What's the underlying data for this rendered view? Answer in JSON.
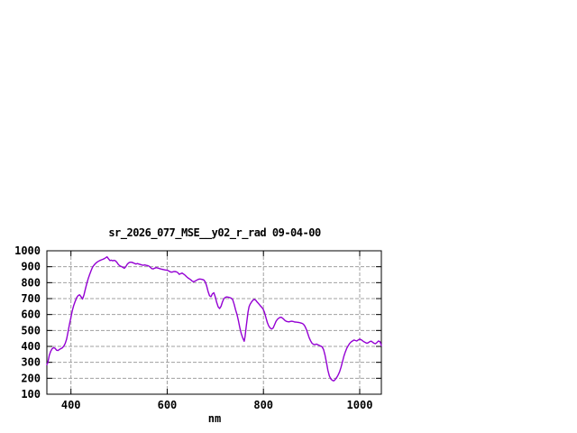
{
  "window": {
    "background": "#ffffff"
  },
  "colors": {
    "line": "#9400d3",
    "grid": "#a0a0a0",
    "axis": "#000000",
    "text": "#000000",
    "background": "#ffffff"
  },
  "chart_data": {
    "type": "line",
    "title": "sr_2026_077_MSE__y02_r_rad 09-04-00",
    "xlabel": "nm",
    "ylabel": "",
    "xlim": [
      350,
      1045
    ],
    "ylim": [
      100,
      1000
    ],
    "x_ticks": [
      400,
      600,
      800,
      1000
    ],
    "y_ticks": [
      100,
      200,
      300,
      400,
      500,
      600,
      700,
      800,
      900,
      1000
    ],
    "grid": true,
    "legend_position": "none",
    "series": [
      {
        "name": "sr_2026_077_MSE__y02_r_rad",
        "color": "#9400d3",
        "points": [
          [
            350,
            285
          ],
          [
            352,
            300
          ],
          [
            355,
            345
          ],
          [
            358,
            370
          ],
          [
            361,
            386
          ],
          [
            364,
            392
          ],
          [
            367,
            388
          ],
          [
            370,
            376
          ],
          [
            373,
            374
          ],
          [
            376,
            381
          ],
          [
            379,
            386
          ],
          [
            382,
            391
          ],
          [
            385,
            401
          ],
          [
            388,
            418
          ],
          [
            391,
            446
          ],
          [
            394,
            492
          ],
          [
            397,
            540
          ],
          [
            400,
            583
          ],
          [
            403,
            627
          ],
          [
            406,
            659
          ],
          [
            409,
            684
          ],
          [
            412,
            706
          ],
          [
            415,
            719
          ],
          [
            418,
            724
          ],
          [
            421,
            712
          ],
          [
            424,
            697
          ],
          [
            427,
            722
          ],
          [
            430,
            760
          ],
          [
            433,
            795
          ],
          [
            436,
            826
          ],
          [
            439,
            852
          ],
          [
            442,
            876
          ],
          [
            445,
            898
          ],
          [
            448,
            910
          ],
          [
            451,
            920
          ],
          [
            454,
            928
          ],
          [
            457,
            934
          ],
          [
            460,
            939
          ],
          [
            463,
            943
          ],
          [
            466,
            946
          ],
          [
            469,
            950
          ],
          [
            472,
            956
          ],
          [
            475,
            962
          ],
          [
            478,
            950
          ],
          [
            481,
            939
          ],
          [
            484,
            941
          ],
          [
            487,
            937
          ],
          [
            490,
            940
          ],
          [
            493,
            936
          ],
          [
            496,
            926
          ],
          [
            499,
            912
          ],
          [
            502,
            905
          ],
          [
            505,
            901
          ],
          [
            508,
            896
          ],
          [
            511,
            890
          ],
          [
            514,
            900
          ],
          [
            517,
            915
          ],
          [
            520,
            924
          ],
          [
            523,
            928
          ],
          [
            526,
            928
          ],
          [
            529,
            925
          ],
          [
            532,
            921
          ],
          [
            535,
            917
          ],
          [
            538,
            920
          ],
          [
            541,
            917
          ],
          [
            544,
            914
          ],
          [
            547,
            911
          ],
          [
            550,
            909
          ],
          [
            553,
            911
          ],
          [
            556,
            909
          ],
          [
            559,
            907
          ],
          [
            562,
            904
          ],
          [
            565,
            896
          ],
          [
            568,
            888
          ],
          [
            571,
            886
          ],
          [
            574,
            891
          ],
          [
            577,
            894
          ],
          [
            580,
            892
          ],
          [
            583,
            889
          ],
          [
            586,
            886
          ],
          [
            589,
            884
          ],
          [
            592,
            882
          ],
          [
            595,
            880
          ],
          [
            598,
            879
          ],
          [
            601,
            877
          ],
          [
            604,
            872
          ],
          [
            607,
            867
          ],
          [
            610,
            866
          ],
          [
            613,
            869
          ],
          [
            616,
            870
          ],
          [
            619,
            868
          ],
          [
            622,
            863
          ],
          [
            625,
            852
          ],
          [
            628,
            856
          ],
          [
            631,
            860
          ],
          [
            634,
            854
          ],
          [
            637,
            847
          ],
          [
            640,
            838
          ],
          [
            643,
            830
          ],
          [
            646,
            824
          ],
          [
            649,
            818
          ],
          [
            652,
            810
          ],
          [
            655,
            805
          ],
          [
            658,
            810
          ],
          [
            661,
            815
          ],
          [
            664,
            820
          ],
          [
            667,
            823
          ],
          [
            670,
            822
          ],
          [
            673,
            820
          ],
          [
            676,
            817
          ],
          [
            679,
            805
          ],
          [
            682,
            780
          ],
          [
            685,
            745
          ],
          [
            688,
            718
          ],
          [
            691,
            712
          ],
          [
            694,
            730
          ],
          [
            697,
            737
          ],
          [
            700,
            710
          ],
          [
            703,
            675
          ],
          [
            706,
            648
          ],
          [
            709,
            638
          ],
          [
            712,
            652
          ],
          [
            715,
            680
          ],
          [
            718,
            700
          ],
          [
            721,
            708
          ],
          [
            724,
            710
          ],
          [
            727,
            709
          ],
          [
            730,
            706
          ],
          [
            733,
            703
          ],
          [
            736,
            693
          ],
          [
            739,
            665
          ],
          [
            742,
            630
          ],
          [
            745,
            600
          ],
          [
            748,
            560
          ],
          [
            751,
            515
          ],
          [
            754,
            478
          ],
          [
            757,
            452
          ],
          [
            760,
            432
          ],
          [
            762,
            465
          ],
          [
            764,
            520
          ],
          [
            766,
            570
          ],
          [
            768,
            615
          ],
          [
            770,
            648
          ],
          [
            772,
            663
          ],
          [
            775,
            678
          ],
          [
            778,
            690
          ],
          [
            781,
            695
          ],
          [
            784,
            690
          ],
          [
            787,
            678
          ],
          [
            790,
            668
          ],
          [
            793,
            657
          ],
          [
            796,
            647
          ],
          [
            799,
            636
          ],
          [
            802,
            615
          ],
          [
            805,
            582
          ],
          [
            808,
            550
          ],
          [
            811,
            528
          ],
          [
            814,
            515
          ],
          [
            817,
            509
          ],
          [
            820,
            515
          ],
          [
            823,
            535
          ],
          [
            826,
            557
          ],
          [
            829,
            570
          ],
          [
            832,
            578
          ],
          [
            835,
            583
          ],
          [
            838,
            581
          ],
          [
            841,
            574
          ],
          [
            844,
            565
          ],
          [
            847,
            558
          ],
          [
            850,
            555
          ],
          [
            853,
            554
          ],
          [
            856,
            557
          ],
          [
            859,
            558
          ],
          [
            862,
            556
          ],
          [
            865,
            553
          ],
          [
            868,
            552
          ],
          [
            871,
            551
          ],
          [
            874,
            550
          ],
          [
            877,
            548
          ],
          [
            880,
            545
          ],
          [
            883,
            540
          ],
          [
            886,
            528
          ],
          [
            889,
            508
          ],
          [
            892,
            482
          ],
          [
            895,
            455
          ],
          [
            898,
            435
          ],
          [
            901,
            420
          ],
          [
            904,
            413
          ],
          [
            907,
            411
          ],
          [
            910,
            415
          ],
          [
            913,
            411
          ],
          [
            916,
            406
          ],
          [
            919,
            402
          ],
          [
            922,
            397
          ],
          [
            925,
            380
          ],
          [
            928,
            345
          ],
          [
            931,
            300
          ],
          [
            934,
            250
          ],
          [
            937,
            215
          ],
          [
            940,
            196
          ],
          [
            943,
            187
          ],
          [
            946,
            184
          ],
          [
            949,
            192
          ],
          [
            952,
            204
          ],
          [
            955,
            220
          ],
          [
            958,
            240
          ],
          [
            961,
            268
          ],
          [
            964,
            302
          ],
          [
            967,
            338
          ],
          [
            970,
            365
          ],
          [
            973,
            388
          ],
          [
            976,
            404
          ],
          [
            979,
            418
          ],
          [
            982,
            428
          ],
          [
            985,
            434
          ],
          [
            988,
            440
          ],
          [
            991,
            437
          ],
          [
            994,
            434
          ],
          [
            997,
            441
          ],
          [
            1000,
            446
          ],
          [
            1003,
            442
          ],
          [
            1006,
            435
          ],
          [
            1009,
            429
          ],
          [
            1012,
            424
          ],
          [
            1015,
            420
          ],
          [
            1018,
            424
          ],
          [
            1021,
            430
          ],
          [
            1024,
            433
          ],
          [
            1027,
            426
          ],
          [
            1030,
            419
          ],
          [
            1033,
            417
          ],
          [
            1036,
            425
          ],
          [
            1039,
            434
          ],
          [
            1042,
            430
          ],
          [
            1044,
            415
          ],
          [
            1045,
            405
          ]
        ]
      }
    ]
  }
}
